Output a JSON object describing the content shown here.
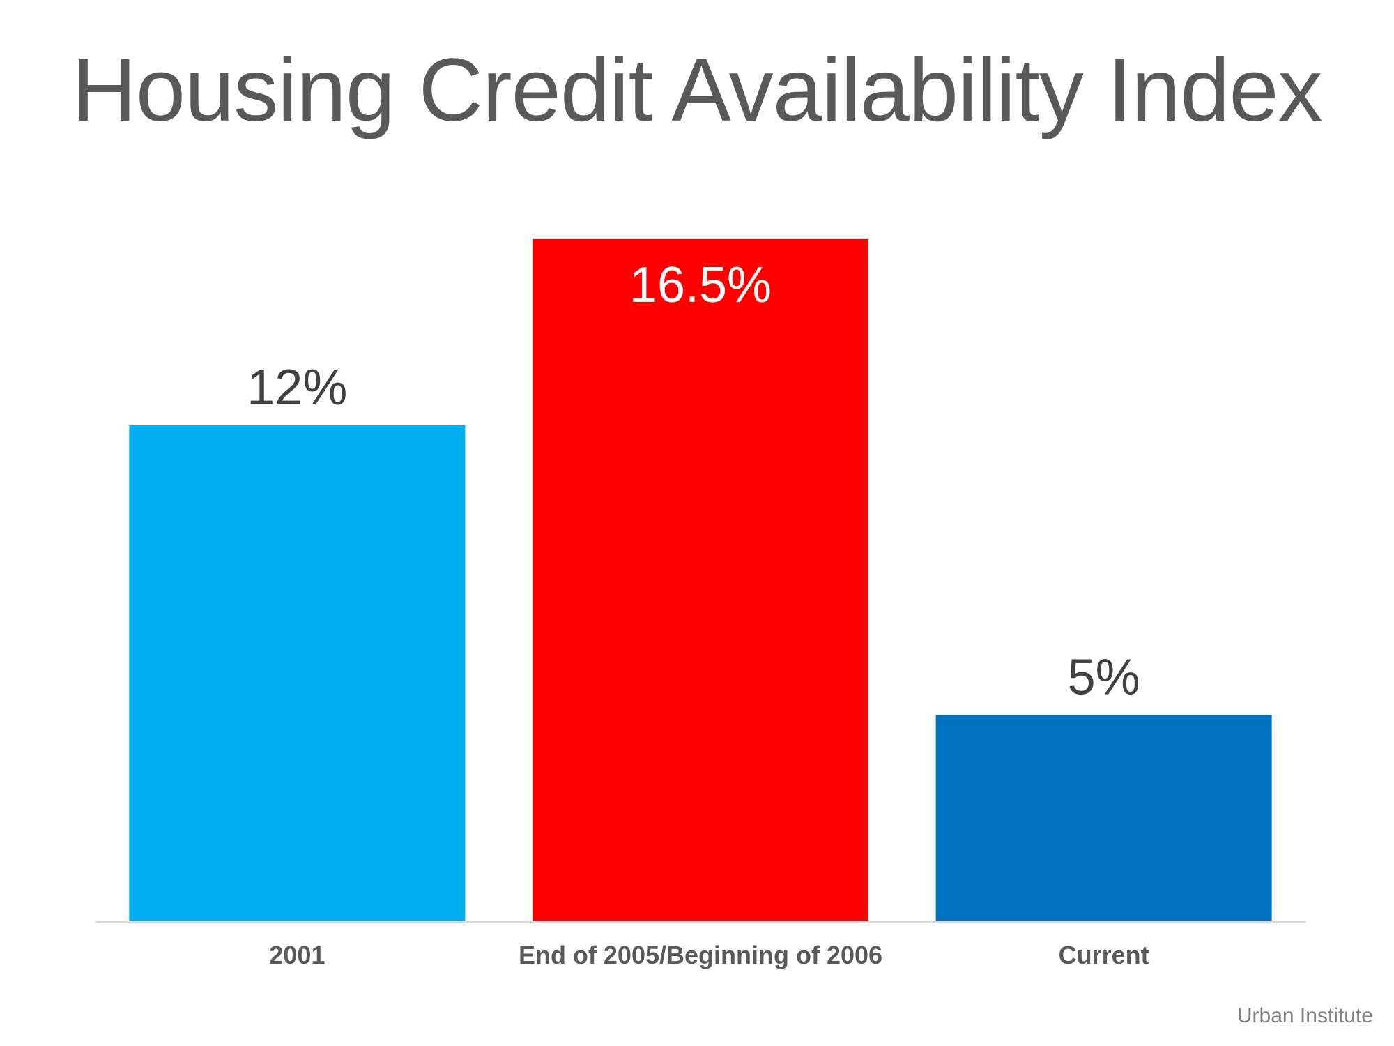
{
  "chart_data": {
    "type": "bar",
    "title": "Housing Credit Availability Index",
    "categories": [
      "2001",
      "End of 2005/Beginning of 2006",
      "Current"
    ],
    "values": [
      12,
      16.5,
      5
    ],
    "data_labels": [
      "12%",
      "16.5%",
      "5%"
    ],
    "colors": [
      "#00AEEF",
      "#FF0000",
      "#0070C0"
    ],
    "label_colors": [
      "#404040",
      "#FFFFFF",
      "#404040"
    ],
    "label_inside": [
      false,
      true,
      false
    ],
    "xlabel": "",
    "ylabel": "",
    "ylim": [
      0,
      16.5
    ],
    "grid": false,
    "legend": "none"
  },
  "source": "Urban Institute"
}
